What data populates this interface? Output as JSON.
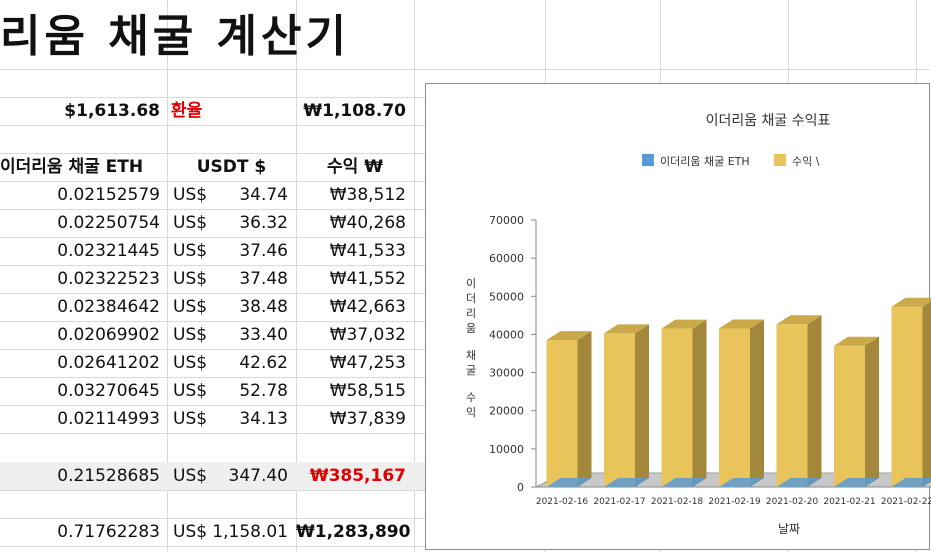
{
  "sheet": {
    "title": "리움 채굴 계산기",
    "price_usd": "$1,613.68",
    "rate_label": "환율",
    "rate_krw": "₩1,108.70",
    "headers": {
      "eth": "이더리움 채굴 ETH",
      "usdt": "USDT $",
      "profit": "수익 ₩"
    },
    "currency_prefix": "US$",
    "rows": [
      {
        "eth": "0.02152579",
        "usdt": "34.74",
        "krw": "₩38,512"
      },
      {
        "eth": "0.02250754",
        "usdt": "36.32",
        "krw": "₩40,268"
      },
      {
        "eth": "0.02321445",
        "usdt": "37.46",
        "krw": "₩41,533"
      },
      {
        "eth": "0.02322523",
        "usdt": "37.48",
        "krw": "₩41,552"
      },
      {
        "eth": "0.02384642",
        "usdt": "38.48",
        "krw": "₩42,663"
      },
      {
        "eth": "0.02069902",
        "usdt": "33.40",
        "krw": "₩37,032"
      },
      {
        "eth": "0.02641202",
        "usdt": "42.62",
        "krw": "₩47,253"
      },
      {
        "eth": "0.03270645",
        "usdt": "52.78",
        "krw": "₩58,515"
      },
      {
        "eth": "0.02114993",
        "usdt": "34.13",
        "krw": "₩37,839"
      }
    ],
    "subtotal": {
      "eth": "0.21528685",
      "usdt": "347.40",
      "krw": "₩385,167"
    },
    "total": {
      "eth": "0.71762283",
      "usdt": "1,158.01",
      "krw": "₩1,283,890"
    }
  },
  "chart_data": {
    "type": "bar",
    "title": "이더리움 채굴 수익표",
    "xlabel": "날짜",
    "ylabel": "이더리움 채굴 수익",
    "ylim": [
      0,
      70000
    ],
    "yticks": [
      "70000",
      "60000",
      "50000",
      "40000",
      "30000",
      "20000",
      "10000",
      "0"
    ],
    "categories": [
      "2021-02-16",
      "2021-02-17",
      "2021-02-18",
      "2021-02-19",
      "2021-02-20",
      "2021-02-21",
      "2021-02-22"
    ],
    "series": [
      {
        "name": "이더리움 채굴 ETH",
        "color": "#5b9bd5",
        "values": [
          0.02152579,
          0.02250754,
          0.02321445,
          0.02322523,
          0.02384642,
          0.02069902,
          0.02641202
        ]
      },
      {
        "name": "수익 \\",
        "color": "#e8c45a",
        "values": [
          38512,
          40268,
          41533,
          41552,
          42663,
          37032,
          47253
        ]
      }
    ],
    "legend_position": "top",
    "grid": false,
    "style": "3d-stacked-column"
  }
}
